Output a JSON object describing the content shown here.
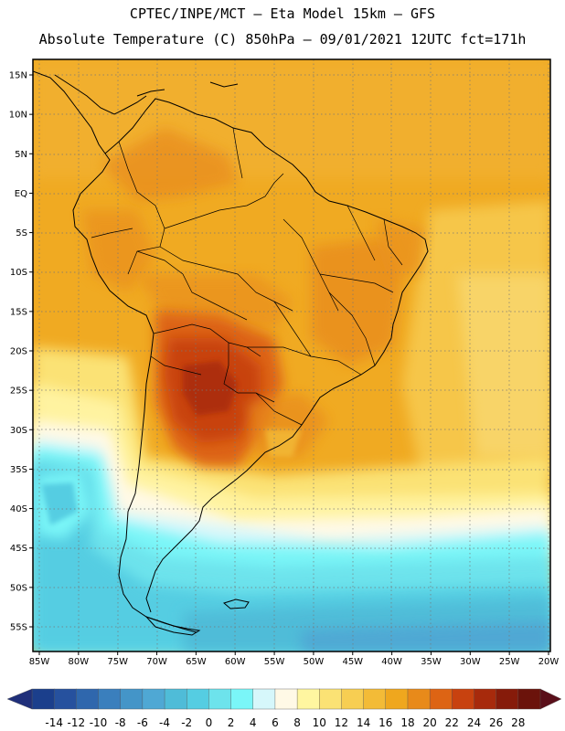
{
  "title_line1": "CPTEC/INPE/MCT –  Eta Model 15km – GFS",
  "title_line2": "Absolute Temperature (C) 850hPa – 09/01/2021 12UTC fct=171h",
  "lat_labels": [
    "15N",
    "10N",
    "5N",
    "EQ",
    "5S",
    "10S",
    "15S",
    "20S",
    "25S",
    "30S",
    "35S",
    "40S",
    "45S",
    "50S",
    "55S"
  ],
  "lat_values": [
    15,
    10,
    5,
    0,
    -5,
    -10,
    -15,
    -20,
    -25,
    -30,
    -35,
    -40,
    -45,
    -50,
    -55
  ],
  "lon_labels": [
    "85W",
    "80W",
    "75W",
    "70W",
    "65W",
    "60W",
    "55W",
    "50W",
    "45W",
    "40W",
    "35W",
    "30W",
    "25W",
    "20W"
  ],
  "lon_values": [
    -85,
    -80,
    -75,
    -70,
    -65,
    -60,
    -55,
    -50,
    -45,
    -40,
    -35,
    -30,
    -25,
    -20
  ],
  "colorbar": {
    "labels": [
      "-14",
      "-12",
      "-10",
      "-8",
      "-6",
      "-4",
      "-2",
      "0",
      "2",
      "4",
      "6",
      "8",
      "10",
      "12",
      "14",
      "16",
      "18",
      "20",
      "22",
      "24",
      "26",
      "28"
    ],
    "colors": [
      "#1b3f8c",
      "#26519e",
      "#2f67ad",
      "#3a7fbd",
      "#4495c8",
      "#4fa8d4",
      "#4fbcd8",
      "#55cde2",
      "#6de3ec",
      "#7af6f8",
      "#d6f7fb",
      "#fff9e6",
      "#fff6a0",
      "#fbe274",
      "#f7ce52",
      "#f3bb37",
      "#efa71e",
      "#e88a1a",
      "#dd6414",
      "#c8420f",
      "#a72a0c",
      "#861b0a",
      "#6b130b"
    ],
    "left_arrow_color": "#1f2f7a",
    "right_arrow_color": "#5a0f1a"
  }
}
